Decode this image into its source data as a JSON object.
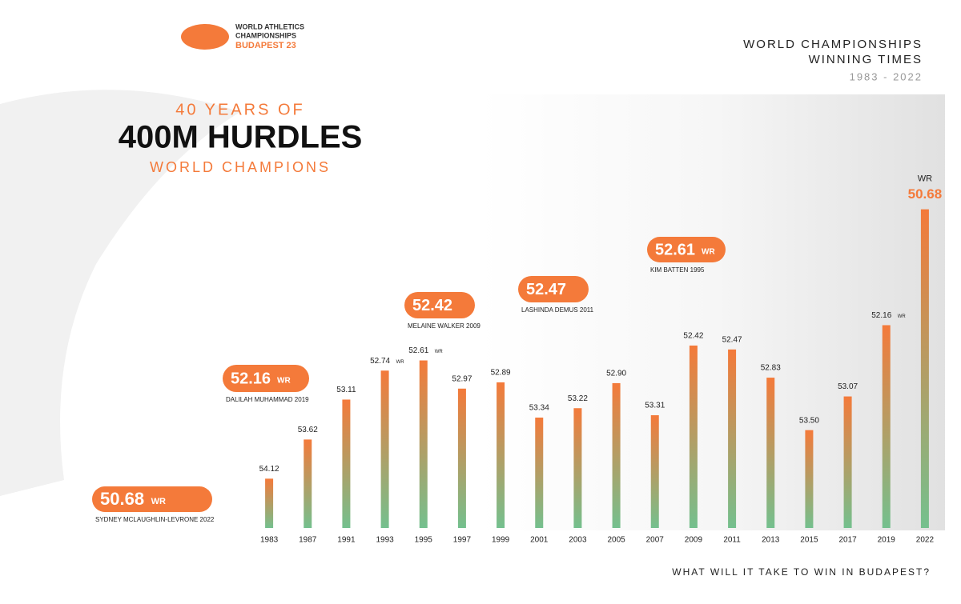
{
  "logo": {
    "line1": "WORLD ATHLETICS",
    "line2": "CHAMPIONSHIPS",
    "line3": "BUDAPEST 23"
  },
  "header": {
    "title1": "WORLD CHAMPIONSHIPS",
    "title2": "WINNING TIMES",
    "range": "1983 - 2022"
  },
  "hero": {
    "kicker": "40 YEARS OF",
    "title": "400M HURDLES",
    "subtitle": "WORLD CHAMPIONS"
  },
  "callouts": [
    {
      "time": "50.68",
      "note": "WR",
      "name": "SYDNEY MCLAUGHLIN-LEVRONE 2022"
    },
    {
      "time": "52.16",
      "note": "WR",
      "name": "DALILAH MUHAMMAD 2019"
    },
    {
      "time": "52.42",
      "name": "MELAINE WALKER 2009"
    },
    {
      "time": "52.47",
      "name": "LASHINDA DEMUS 2011"
    },
    {
      "time": "52.61",
      "note": "WR",
      "name": "KIM BATTEN 1995"
    }
  ],
  "footer": "WHAT WILL IT TAKE TO WIN IN BUDAPEST?",
  "chart_data": {
    "type": "bar",
    "categories": [
      "1983",
      "1987",
      "1991",
      "1993",
      "1995",
      "1997",
      "1999",
      "2001",
      "2003",
      "2005",
      "2007",
      "2009",
      "2011",
      "2013",
      "2015",
      "2017",
      "2019",
      "2022"
    ],
    "values": [
      54.12,
      53.62,
      53.11,
      52.74,
      52.61,
      52.97,
      52.89,
      53.34,
      53.22,
      52.9,
      53.31,
      52.42,
      52.47,
      52.83,
      53.5,
      53.07,
      52.16,
      50.68
    ],
    "value_labels": [
      "54.12",
      "53.62",
      "53.11",
      "52.74",
      "52.61",
      "52.97",
      "52.89",
      "53.34",
      "53.22",
      "52.90",
      "53.31",
      "52.42",
      "52.47",
      "52.83",
      "53.50",
      "53.07",
      "52.16",
      "50.68"
    ],
    "value_notes": [
      null,
      null,
      null,
      "WR",
      "WR",
      null,
      null,
      null,
      null,
      null,
      null,
      null,
      null,
      null,
      null,
      null,
      "WR",
      "WR"
    ],
    "ylim": [
      54.75,
      50.5
    ],
    "colors": [
      "#f47a3a",
      "#74c08e"
    ]
  }
}
